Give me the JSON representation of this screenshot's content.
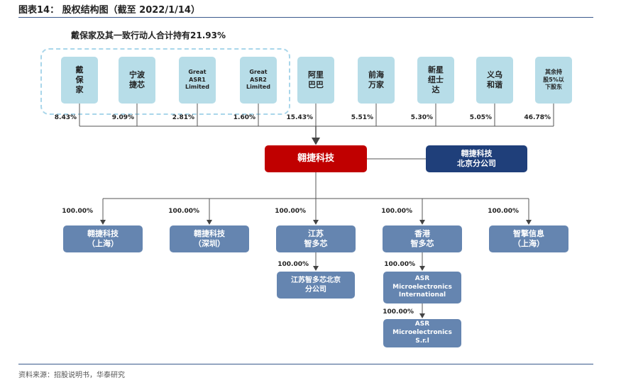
{
  "header": {
    "title": "图表14：  股权结构图（截至 2022/1/14）"
  },
  "group_label": "戴保家及其一致行动人合计持有21.93%",
  "shareholders": [
    {
      "lines": [
        "戴",
        "保",
        "家"
      ],
      "stake": "8.43%"
    },
    {
      "lines": [
        "宁波",
        "捷芯"
      ],
      "stake": "9.09%"
    },
    {
      "lines": [
        "Great",
        "ASR1",
        "Limited"
      ],
      "stake": "2.81%"
    },
    {
      "lines": [
        "Great",
        "ASR2",
        "Limited"
      ],
      "stake": "1.60%"
    },
    {
      "lines": [
        "阿里",
        "巴巴"
      ],
      "stake": "15.43%"
    },
    {
      "lines": [
        "前海",
        "万家"
      ],
      "stake": "5.51%"
    },
    {
      "lines": [
        "新星",
        "纽士",
        "达"
      ],
      "stake": "5.30%"
    },
    {
      "lines": [
        "义乌",
        "和谐"
      ],
      "stake": "5.05%"
    },
    {
      "lines": [
        "其余持",
        "股5%以",
        "下股东"
      ],
      "stake": "46.78%"
    }
  ],
  "company": {
    "lines": [
      "翱捷科技"
    ]
  },
  "branch": {
    "lines": [
      "翱捷科技",
      "北京分公司"
    ]
  },
  "subsidiaries": [
    {
      "lines": [
        "翱捷科技",
        "（上海）"
      ],
      "stake": "100.00%"
    },
    {
      "lines": [
        "翱捷科技",
        "（深圳）"
      ],
      "stake": "100.00%"
    },
    {
      "lines": [
        "江苏",
        "智多芯"
      ],
      "stake": "100.00%",
      "children": [
        {
          "lines": [
            "江苏智多芯北京",
            "分公司"
          ],
          "stake": "100.00%"
        }
      ]
    },
    {
      "lines": [
        "香港",
        "智多芯"
      ],
      "stake": "100.00%",
      "children": [
        {
          "lines": [
            "ASR",
            "Microelectronics",
            "International"
          ],
          "stake": "100.00%"
        },
        {
          "lines": [
            "ASR",
            "Microelectronics",
            "S.r.l"
          ],
          "stake": "100.00%"
        }
      ]
    },
    {
      "lines": [
        "智擎信息",
        "（上海）"
      ],
      "stake": "100.00%"
    }
  ],
  "source": "资料来源：招股说明书，华泰研究"
}
